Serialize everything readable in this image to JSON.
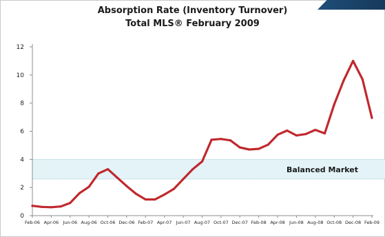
{
  "chart_data": {
    "type": "line",
    "title": "Absorption Rate (Inventory Turnover)",
    "subtitle": "Total MLS® February 2009",
    "xlabel": "",
    "ylabel": "",
    "ylim": [
      0,
      12
    ],
    "y_ticks": [
      "0",
      "2",
      "4",
      "6",
      "8",
      "10",
      "12"
    ],
    "grid": false,
    "legend": "none",
    "x_tick_labels": [
      "Feb-06",
      "Apr-06",
      "Jun-06",
      "Aug-06",
      "Oct-06",
      "Dec-06",
      "Feb-07",
      "Apr-07",
      "Jun-07",
      "Aug-07",
      "Oct-07",
      "Dec-07",
      "Feb-08",
      "Apr-08",
      "Jun-08",
      "Aug-08",
      "Oct-08",
      "Dec-08",
      "Feb-09"
    ],
    "x": [
      "Feb-06",
      "Mar-06",
      "Apr-06",
      "May-06",
      "Jun-06",
      "Jul-06",
      "Aug-06",
      "Sep-06",
      "Oct-06",
      "Nov-06",
      "Dec-06",
      "Jan-07",
      "Feb-07",
      "Mar-07",
      "Apr-07",
      "May-07",
      "Jun-07",
      "Jul-07",
      "Aug-07",
      "Sep-07",
      "Oct-07",
      "Nov-07",
      "Dec-07",
      "Jan-08",
      "Feb-08",
      "Mar-08",
      "Apr-08",
      "May-08",
      "Jun-08",
      "Jul-08",
      "Aug-08",
      "Sep-08",
      "Oct-08",
      "Nov-08",
      "Dec-08",
      "Jan-09",
      "Feb-09"
    ],
    "series": [
      {
        "color": "#c0282d",
        "values": [
          0.7,
          0.62,
          0.6,
          0.65,
          0.9,
          1.6,
          2.05,
          3.0,
          3.3,
          2.7,
          2.1,
          1.55,
          1.15,
          1.15,
          1.5,
          1.9,
          2.6,
          3.3,
          3.85,
          5.4,
          5.45,
          5.35,
          4.85,
          4.7,
          4.75,
          5.05,
          5.75,
          6.05,
          5.7,
          5.8,
          6.1,
          5.85,
          7.9,
          9.6,
          11.0,
          9.7,
          6.95
        ]
      }
    ],
    "band": {
      "label": "Balanced Market",
      "from": 2.6,
      "to": 4.0,
      "color": "#e3f3f8"
    }
  }
}
